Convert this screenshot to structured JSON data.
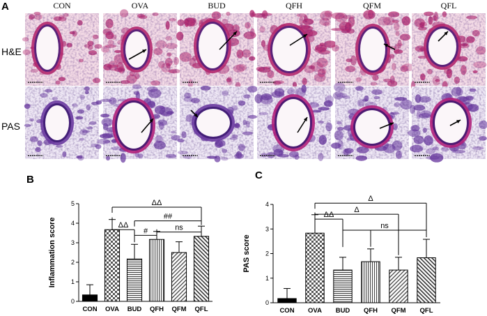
{
  "panel_a": {
    "letter": "A",
    "columns": [
      "CON",
      "OVA",
      "BUD",
      "QFH",
      "QFM",
      "QFL"
    ],
    "rows": [
      "H&E",
      "PAS"
    ]
  },
  "chart_data": [
    {
      "type": "bar",
      "letter": "B",
      "ylabel": "Inflammation score",
      "categories": [
        "CON",
        "OVA",
        "BUD",
        "QFH",
        "QFM",
        "QFL"
      ],
      "values": [
        0.33,
        3.67,
        2.17,
        3.17,
        2.5,
        3.33
      ],
      "errors": [
        0.52,
        0.52,
        0.75,
        0.41,
        0.55,
        0.52
      ],
      "ylim": [
        0,
        5
      ],
      "yticks": [
        0,
        1,
        2,
        3,
        4,
        5
      ],
      "patterns": [
        "solid",
        "checker",
        "hstripe",
        "vstripe",
        "dstripe-down",
        "dstripe-up"
      ],
      "annotations": [
        {
          "text": "ΔΔ",
          "from": "OVA",
          "to": [
            "BUD"
          ],
          "y": 3.67
        },
        {
          "text": "ΔΔ",
          "from": "OVA",
          "to": [
            "QFL"
          ],
          "y": 4.82
        },
        {
          "text": "#",
          "from": "BUD",
          "to": [
            "QFH"
          ],
          "y": 3.38
        },
        {
          "text": "##",
          "from": "BUD",
          "to": [
            "QFL"
          ],
          "y": 4.12
        },
        {
          "text": "ns",
          "from": "QFH",
          "to": [
            "QFL"
          ],
          "y": 3.55
        }
      ]
    },
    {
      "type": "bar",
      "letter": "C",
      "ylabel": "PAS score",
      "categories": [
        "CON",
        "OVA",
        "BUD",
        "QFH",
        "QFM",
        "QFL"
      ],
      "values": [
        0.17,
        2.83,
        1.33,
        1.67,
        1.33,
        1.83
      ],
      "errors": [
        0.41,
        0.75,
        0.52,
        0.52,
        0.52,
        0.75
      ],
      "ylim": [
        0,
        4
      ],
      "yticks": [
        0,
        1,
        2,
        3,
        4
      ],
      "patterns": [
        "solid",
        "checker",
        "hstripe",
        "vstripe",
        "dstripe-down",
        "dstripe-up"
      ],
      "annotations": [
        {
          "text": "ΔΔ",
          "from": "OVA",
          "to": [
            "BUD"
          ],
          "y": 3.4
        },
        {
          "text": "Δ",
          "from": "OVA",
          "to": [
            "QFM"
          ],
          "y": 3.6
        },
        {
          "text": "Δ",
          "from": "OVA",
          "to": [
            "QFL"
          ],
          "y": 4.05
        },
        {
          "text": "ns",
          "from": "BUD",
          "to": [
            "QFH",
            "QFM",
            "QFL"
          ],
          "y": 2.95
        }
      ]
    }
  ],
  "colors": {
    "he_bg": "#f4dce6",
    "he_tissue": "#b2286e",
    "he_nuclei": "#4a1f7a",
    "pas_bg": "#efe9f5",
    "pas_tissue": "#6a3aa0",
    "pas_dark": "#3b1770",
    "pas_magenta": "#b0207a"
  }
}
